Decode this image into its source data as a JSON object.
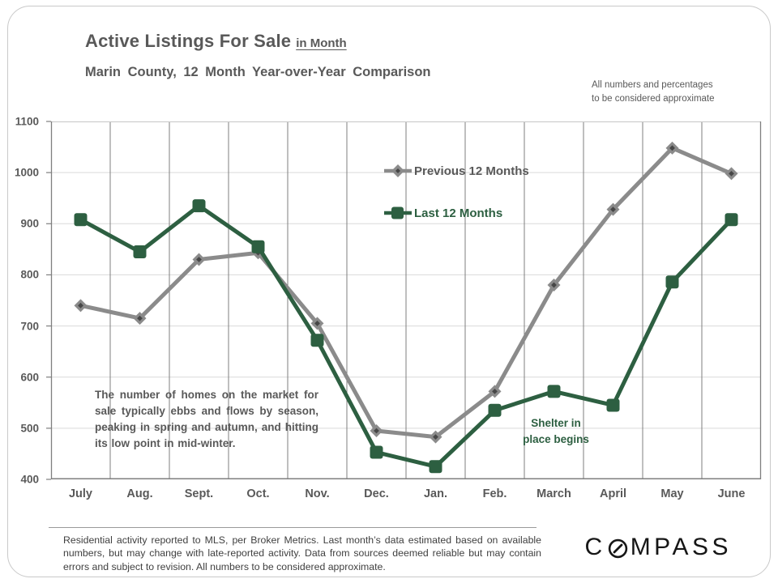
{
  "page": {
    "title": "Active Listings For Sale",
    "title_suffix": "in Month",
    "subtitle": "Marin County, 12 Month Year-over-Year Comparison",
    "top_note": "All numbers and percentages\nto be considered approximate"
  },
  "chart_data": {
    "type": "line",
    "title": "Active Listings For Sale in Month — Marin County, 12 Month Year-over-Year Comparison",
    "categories": [
      "July",
      "Aug.",
      "Sept.",
      "Oct.",
      "Nov.",
      "Dec.",
      "Jan.",
      "Feb.",
      "March",
      "April",
      "May",
      "June"
    ],
    "series": [
      {
        "name": "Previous 12 Months",
        "color": "#8b8b8b",
        "marker": "diamond",
        "marker_center_color": "#474747",
        "values": [
          740,
          715,
          830,
          843,
          705,
          495,
          483,
          572,
          780,
          928,
          1048,
          998
        ]
      },
      {
        "name": "Last 12 Months",
        "color": "#2d5f41",
        "marker": "square",
        "values": [
          908,
          845,
          935,
          855,
          672,
          453,
          425,
          535,
          572,
          545,
          786,
          908
        ]
      }
    ],
    "ylim": [
      400,
      1100
    ],
    "ytick_step": 100,
    "grid": true,
    "legend_position": "inside-top-center",
    "colors": {
      "grid_vertical": "#7f7f7f",
      "grid_horizontal": "#d9d9d9",
      "frame": "#7f7f7f",
      "frame_top": "#c6c6c6"
    }
  },
  "annotations": {
    "seasonality": "The number of homes on the market for sale typically ebbs and flows by season, peaking in spring and autumn, and hitting its low point in mid-winter.",
    "shelter": "Shelter in\nplace  begins"
  },
  "footer": {
    "disclaimer": "Residential activity reported to MLS, per Broker Metrics. Last month’s data estimated based on available numbers, but may change with late-reported activity. Data from sources deemed reliable but may contain errors and subject to revision. All numbers to be considered approximate.",
    "logo_c": "C",
    "logo_rest": "MPASS"
  }
}
